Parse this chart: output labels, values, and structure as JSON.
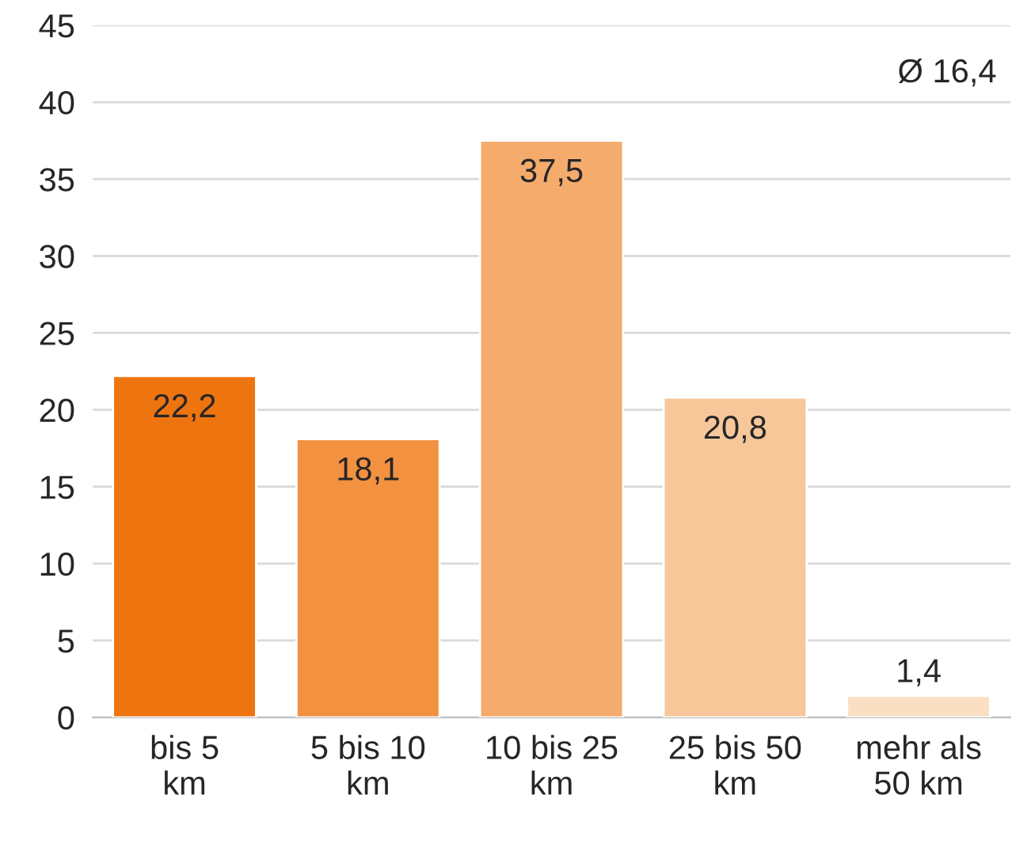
{
  "chart_data": {
    "type": "bar",
    "categories": [
      "bis 5\nkm",
      "5 bis 10\nkm",
      "10 bis 25\nkm",
      "25 bis 50\nkm",
      "mehr als\n50 km"
    ],
    "values": [
      22.2,
      18.1,
      37.5,
      20.8,
      1.4
    ],
    "colors": [
      "#ee7410",
      "#f29140",
      "#f4ab6c",
      "#f7c79a",
      "#fbdfc3"
    ],
    "value_labels": [
      "22,2",
      "18,1",
      "37,5",
      "20,8",
      "1,4"
    ],
    "ylim": [
      0,
      45
    ],
    "yticks": [
      0,
      5,
      10,
      15,
      20,
      25,
      30,
      35,
      40,
      45
    ],
    "grid": "y",
    "annotations": [
      "Ø 16,4"
    ]
  }
}
